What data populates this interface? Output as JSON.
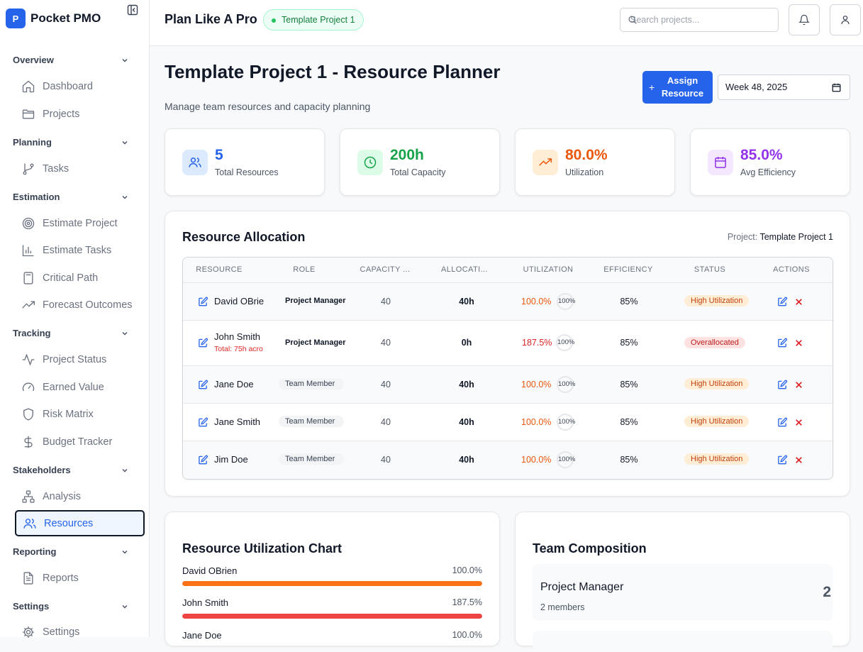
{
  "app": {
    "logo_letter": "P",
    "name": "Pocket PMO"
  },
  "sidebar": {
    "sections": [
      {
        "label": "Overview",
        "items": [
          {
            "label": "Dashboard",
            "icon": "home-icon"
          },
          {
            "label": "Projects",
            "icon": "folder-icon"
          }
        ]
      },
      {
        "label": "Planning",
        "items": [
          {
            "label": "Tasks",
            "icon": "git-branch-icon"
          }
        ]
      },
      {
        "label": "Estimation",
        "items": [
          {
            "label": "Estimate Project",
            "icon": "target-icon"
          },
          {
            "label": "Estimate Tasks",
            "icon": "bar-chart-icon"
          },
          {
            "label": "Critical Path",
            "icon": "calculator-icon"
          },
          {
            "label": "Forecast Outcomes",
            "icon": "trending-up-icon"
          }
        ]
      },
      {
        "label": "Tracking",
        "items": [
          {
            "label": "Project Status",
            "icon": "activity-icon"
          },
          {
            "label": "Earned Value",
            "icon": "gauge-icon"
          },
          {
            "label": "Risk Matrix",
            "icon": "shield-icon"
          },
          {
            "label": "Budget Tracker",
            "icon": "dollar-icon"
          }
        ]
      },
      {
        "label": "Stakeholders",
        "items": [
          {
            "label": "Analysis",
            "icon": "network-icon"
          },
          {
            "label": "Resources",
            "icon": "users-icon",
            "active": true
          }
        ]
      },
      {
        "label": "Reporting",
        "items": [
          {
            "label": "Reports",
            "icon": "file-text-icon"
          }
        ]
      },
      {
        "label": "Settings",
        "items": [
          {
            "label": "Settings",
            "icon": "gear-icon"
          }
        ]
      }
    ]
  },
  "header": {
    "title": "Plan Like A Pro",
    "project_badge": "Template Project 1",
    "search_placeholder": "Search projects..."
  },
  "page": {
    "title": "Template Project 1 - Resource Planner",
    "subtitle": "Manage team resources and capacity planning",
    "assign_button": "Assign Resource",
    "week_value": "Week 48, 2025"
  },
  "stats": [
    {
      "value": "5",
      "label": "Total Resources",
      "color": "#2563eb",
      "bg": "#dbeafe",
      "icon": "users-icon"
    },
    {
      "value": "200h",
      "label": "Total Capacity",
      "color": "#16a34a",
      "bg": "#dcfce7",
      "icon": "clock-icon"
    },
    {
      "value": "80.0%",
      "label": "Utilization",
      "color": "#ea580c",
      "bg": "#ffedd5",
      "icon": "trending-up-icon"
    },
    {
      "value": "85.0%",
      "label": "Avg Efficiency",
      "color": "#9333ea",
      "bg": "#f3e8ff",
      "icon": "calendar-icon"
    }
  ],
  "allocation": {
    "title": "Resource Allocation",
    "project_label": "Project:",
    "project_name": "Template Project 1",
    "columns": [
      "RESOURCE",
      "ROLE",
      "CAPACITY ...",
      "ALLOCATI...",
      "UTILIZATION",
      "EFFICIENCY",
      "STATUS",
      "ACTIONS"
    ],
    "rows": [
      {
        "name": "David OBrie",
        "note": "",
        "role": "Project Manager",
        "role_style": "bold",
        "capacity": "40",
        "allocated": "40h",
        "utilization": "100.0%",
        "ring": "100%",
        "efficiency": "85%",
        "status": "High Utilization",
        "status_type": "high"
      },
      {
        "name": "John Smith",
        "note": "Total: 75h acro",
        "role": "Project Manager",
        "role_style": "bold",
        "capacity": "40",
        "allocated": "0h",
        "utilization": "187.5%",
        "ring": "100%",
        "efficiency": "85%",
        "status": "Overallocated",
        "status_type": "over"
      },
      {
        "name": "Jane Doe",
        "note": "",
        "role": "Team Member",
        "role_style": "pill",
        "capacity": "40",
        "allocated": "40h",
        "utilization": "100.0%",
        "ring": "100%",
        "efficiency": "85%",
        "status": "High Utilization",
        "status_type": "high"
      },
      {
        "name": "Jane Smith",
        "note": "",
        "role": "Team Member",
        "role_style": "pill",
        "capacity": "40",
        "allocated": "40h",
        "utilization": "100.0%",
        "ring": "100%",
        "efficiency": "85%",
        "status": "High Utilization",
        "status_type": "high"
      },
      {
        "name": "Jim Doe",
        "note": "",
        "role": "Team Member",
        "role_style": "pill",
        "capacity": "40",
        "allocated": "40h",
        "utilization": "100.0%",
        "ring": "100%",
        "efficiency": "85%",
        "status": "High Utilization",
        "status_type": "high"
      }
    ]
  },
  "util_chart": {
    "title": "Resource Utilization Chart",
    "bars": [
      {
        "name": "David OBrien",
        "pct_label": "100.0%",
        "fill": 1.0,
        "color": "#f97316"
      },
      {
        "name": "John Smith",
        "pct_label": "187.5%",
        "fill": 1.0,
        "color": "#ef4444"
      },
      {
        "name": "Jane Doe",
        "pct_label": "100.0%",
        "fill": 1.0,
        "color": "#f97316"
      }
    ]
  },
  "team": {
    "title": "Team Composition",
    "groups": [
      {
        "role": "Project Manager",
        "members": "2 members",
        "count": "2"
      }
    ]
  }
}
